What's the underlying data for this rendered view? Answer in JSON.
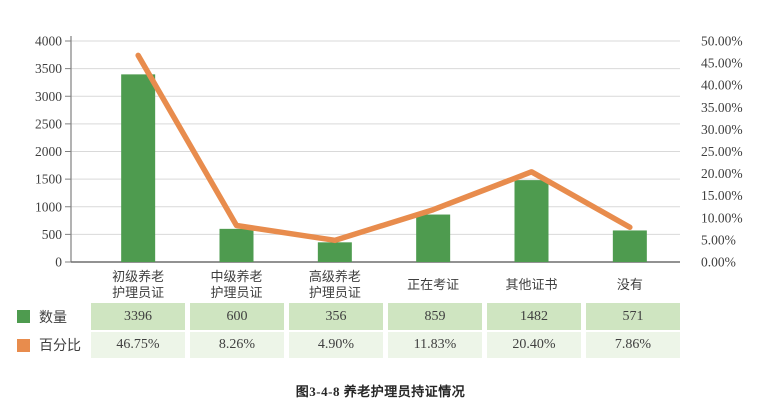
{
  "figure": {
    "caption": "图3-4-8 养老护理员持证情况"
  },
  "colors": {
    "bar_green": "#4e9b4f",
    "line_orange": "#e88c4d",
    "gridline": "#d9d9d9",
    "axis_line": "#808080",
    "bottom_axis_line": "#6e6e6e",
    "tick_text": "#3f3f3f",
    "count_row_bg": "#cfe5c1",
    "percent_row_bg": "#edf5e8",
    "caption_text": "#262626"
  },
  "chart_data": {
    "type": "bar",
    "subtype": "bar+line combo, dual axis",
    "title": "图3-4-8 养老护理员持证情况",
    "categories": [
      "初级养老护理员证",
      "中级养老护理员证",
      "高级养老护理员证",
      "正在考证",
      "其他证书",
      "没有"
    ],
    "category_label_lines": [
      [
        "初级养老",
        "护理员证"
      ],
      [
        "中级养老",
        "护理员证"
      ],
      [
        "高级养老",
        "护理员证"
      ],
      [
        "正在考证"
      ],
      [
        "其他证书"
      ],
      [
        "没有"
      ]
    ],
    "series": [
      {
        "name": "数量",
        "type": "bar",
        "axis": "left",
        "color": "#4e9b4f",
        "values": [
          3396,
          600,
          356,
          859,
          1482,
          571
        ]
      },
      {
        "name": "百分比",
        "type": "line",
        "axis": "right",
        "color": "#e88c4d",
        "values": [
          46.75,
          8.26,
          4.9,
          11.83,
          20.4,
          7.86
        ]
      }
    ],
    "left_axis": {
      "min": 0,
      "max": 4000,
      "step": 500,
      "tick_labels": [
        "0",
        "500",
        "1000",
        "1500",
        "2000",
        "2500",
        "3000",
        "3500",
        "4000"
      ]
    },
    "right_axis": {
      "min": 0,
      "max": 50,
      "step": 5,
      "tick_labels": [
        "0.00%",
        "5.00%",
        "10.00%",
        "15.00%",
        "20.00%",
        "25.00%",
        "30.00%",
        "35.00%",
        "40.00%",
        "45.00%",
        "50.00%"
      ]
    },
    "grid": true,
    "legend_position": "bottom-left beside table rows",
    "table": {
      "rows": [
        {
          "label": "数量",
          "swatch_color": "#4e9b4f",
          "row_bg": "#cfe5c1",
          "values": [
            "3396",
            "600",
            "356",
            "859",
            "1482",
            "571"
          ]
        },
        {
          "label": "百分比",
          "swatch_color": "#e88c4d",
          "row_bg": "#edf5e8",
          "values": [
            "46.75%",
            "8.26%",
            "4.90%",
            "11.83%",
            "20.40%",
            "7.86%"
          ]
        }
      ]
    }
  }
}
